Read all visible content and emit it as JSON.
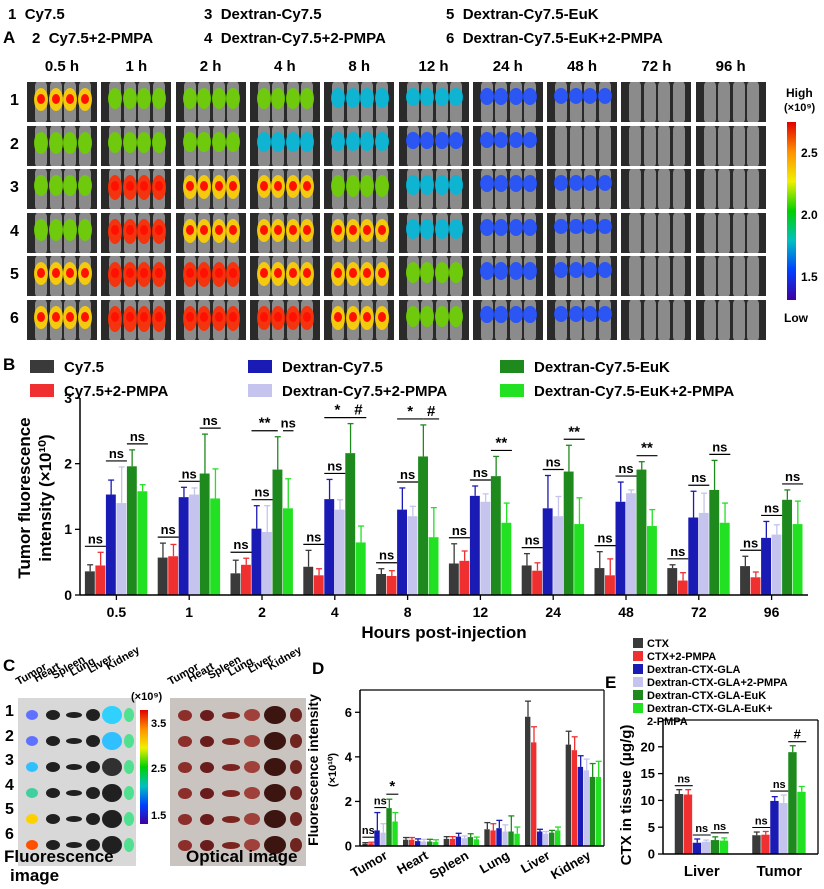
{
  "panel_a": {
    "letter": "A",
    "legend": [
      {
        "num": "1",
        "label": "Cy7.5"
      },
      {
        "num": "2",
        "label": "Cy7.5+2-PMPA"
      },
      {
        "num": "3",
        "label": "Dextran-Cy7.5"
      },
      {
        "num": "4",
        "label": "Dextran-Cy7.5+2-PMPA"
      },
      {
        "num": "5",
        "label": "Dextran-Cy7.5-EuK"
      },
      {
        "num": "6",
        "label": "Dextran-Cy7.5-EuK+2-PMPA"
      }
    ],
    "timepoints": [
      "0.5 h",
      "1 h",
      "2 h",
      "4 h",
      "8 h",
      "12 h",
      "24 h",
      "48 h",
      "72 h",
      "96 h"
    ],
    "rows": [
      "1",
      "2",
      "3",
      "4",
      "5",
      "6"
    ],
    "colorbar": {
      "high": "High",
      "unit": "(×10⁹)",
      "ticks": [
        "2.5",
        "2.0",
        "1.5"
      ],
      "low": "Low"
    }
  },
  "panel_c": {
    "letter": "C",
    "organs": [
      "Tumor",
      "Heart",
      "Spleen",
      "Lung",
      "Liver",
      "Kidney"
    ],
    "rows": [
      "1",
      "2",
      "3",
      "4",
      "5",
      "6"
    ],
    "colorbar": {
      "unit": "(×10⁹)",
      "ticks": [
        "3.5",
        "2.5",
        "1.5"
      ]
    },
    "caption_fluor_1": "Fluorescence",
    "caption_fluor_2": "image",
    "caption_optical": "Optical image"
  },
  "colors": {
    "black": "#3a3a3a",
    "red": "#f03030",
    "blue": "#1a1ab4",
    "lavender": "#c4c4ee",
    "darkgreen": "#1e8a1e",
    "lightgreen": "#22e022"
  },
  "chart_data": [
    {
      "id": "B",
      "type": "bar",
      "letter": "B",
      "ylabel_1": "Tumor fluorescence",
      "ylabel_2": "intensity (×10¹⁰)",
      "xlabel": "Hours post-injection",
      "categories": [
        "0.5",
        "1",
        "2",
        "4",
        "8",
        "12",
        "24",
        "48",
        "72",
        "96"
      ],
      "ylim": [
        0,
        3
      ],
      "yticks": [
        "0",
        "1",
        "2",
        "3"
      ],
      "series": [
        {
          "name": "Cy7.5",
          "color": "#3a3a3a",
          "values": [
            0.36,
            0.57,
            0.33,
            0.43,
            0.32,
            0.48,
            0.45,
            0.41,
            0.41,
            0.44
          ],
          "errors": [
            0.1,
            0.22,
            0.2,
            0.25,
            0.08,
            0.3,
            0.18,
            0.25,
            0.05,
            0.15
          ]
        },
        {
          "name": "Cy7.5+2-PMPA",
          "color": "#f03030",
          "values": [
            0.45,
            0.59,
            0.46,
            0.3,
            0.29,
            0.52,
            0.37,
            0.3,
            0.22,
            0.27
          ],
          "errors": [
            0.2,
            0.18,
            0.1,
            0.1,
            0.08,
            0.15,
            0.12,
            0.25,
            0.12,
            0.08
          ]
        },
        {
          "name": "Dextran-Cy7.5",
          "color": "#1a1ab4",
          "values": [
            1.53,
            1.49,
            1.01,
            1.46,
            1.3,
            1.51,
            1.32,
            1.42,
            1.18,
            0.87
          ],
          "errors": [
            0.22,
            0.15,
            0.35,
            0.3,
            0.33,
            0.15,
            0.5,
            0.3,
            0.4,
            0.25
          ]
        },
        {
          "name": "Dextran-Cy7.5+2-PMPA",
          "color": "#c4c4ee",
          "values": [
            1.4,
            1.53,
            0.96,
            1.3,
            1.2,
            1.42,
            1.2,
            1.55,
            1.25,
            0.92
          ],
          "errors": [
            0.55,
            0.1,
            0.4,
            0.15,
            0.15,
            0.12,
            0.3,
            0.05,
            0.3,
            0.15
          ]
        },
        {
          "name": "Dextran-Cy7.5-EuK",
          "color": "#1e8a1e",
          "values": [
            1.96,
            1.85,
            1.91,
            2.16,
            2.11,
            1.81,
            1.88,
            1.91,
            1.6,
            1.45
          ],
          "errors": [
            0.25,
            0.6,
            0.5,
            0.45,
            0.48,
            0.3,
            0.4,
            0.12,
            0.45,
            0.15
          ]
        },
        {
          "name": "Dextran-Cy7.5-EuK+2-PMPA",
          "color": "#22e022",
          "values": [
            1.58,
            1.47,
            1.32,
            0.8,
            0.88,
            1.1,
            1.08,
            1.05,
            1.1,
            1.08
          ],
          "errors": [
            0.1,
            0.45,
            0.45,
            0.25,
            0.45,
            0.3,
            0.4,
            0.25,
            0.3,
            0.35
          ]
        }
      ],
      "annotations": [
        {
          "group": 0,
          "pair": "left",
          "text": "ns"
        },
        {
          "group": 0,
          "pair": "mid",
          "text": "ns"
        },
        {
          "group": 0,
          "pair": "right",
          "text": "ns"
        },
        {
          "group": 1,
          "pair": "left",
          "text": "ns"
        },
        {
          "group": 1,
          "pair": "mid",
          "text": "ns"
        },
        {
          "group": 1,
          "pair": "right",
          "text": "ns"
        },
        {
          "group": 2,
          "pair": "left",
          "text": "ns"
        },
        {
          "group": 2,
          "pair": "mid",
          "text": "ns"
        },
        {
          "group": 2,
          "pair": "right",
          "text": "**"
        },
        {
          "group": 2,
          "pair": "right2",
          "text": "ns"
        },
        {
          "group": 3,
          "pair": "left",
          "text": "ns"
        },
        {
          "group": 3,
          "pair": "mid",
          "text": "ns"
        },
        {
          "group": 3,
          "pair": "right",
          "text": "*"
        },
        {
          "group": 3,
          "pair": "right2",
          "text": "#"
        },
        {
          "group": 4,
          "pair": "left",
          "text": "ns"
        },
        {
          "group": 4,
          "pair": "mid",
          "text": "ns"
        },
        {
          "group": 4,
          "pair": "right",
          "text": "*"
        },
        {
          "group": 4,
          "pair": "right2",
          "text": "#"
        },
        {
          "group": 5,
          "pair": "left",
          "text": "ns"
        },
        {
          "group": 5,
          "pair": "mid",
          "text": "ns"
        },
        {
          "group": 5,
          "pair": "right",
          "text": "**"
        },
        {
          "group": 6,
          "pair": "left",
          "text": "ns"
        },
        {
          "group": 6,
          "pair": "mid",
          "text": "ns"
        },
        {
          "group": 6,
          "pair": "right",
          "text": "**"
        },
        {
          "group": 7,
          "pair": "left",
          "text": "ns"
        },
        {
          "group": 7,
          "pair": "mid",
          "text": "ns"
        },
        {
          "group": 7,
          "pair": "right",
          "text": "**"
        },
        {
          "group": 8,
          "pair": "left",
          "text": "ns"
        },
        {
          "group": 8,
          "pair": "mid",
          "text": "ns"
        },
        {
          "group": 8,
          "pair": "right",
          "text": "ns"
        },
        {
          "group": 9,
          "pair": "left",
          "text": "ns"
        },
        {
          "group": 9,
          "pair": "mid",
          "text": "ns"
        },
        {
          "group": 9,
          "pair": "right",
          "text": "ns"
        }
      ]
    },
    {
      "id": "D",
      "type": "bar",
      "letter": "D",
      "ylabel_1": "Fluorescence intensity",
      "ylabel_2": "(×10¹⁰)",
      "categories": [
        "Tumor",
        "Heart",
        "Spleen",
        "Lung",
        "Liver",
        "Kidney"
      ],
      "ylim": [
        0,
        7
      ],
      "yticks": [
        "0",
        "2",
        "4",
        "6"
      ],
      "series": [
        {
          "name": "1",
          "color": "#3a3a3a",
          "values": [
            0.1,
            0.28,
            0.32,
            0.75,
            5.8,
            4.55
          ],
          "errors": [
            0.05,
            0.1,
            0.1,
            0.3,
            0.7,
            0.6
          ]
        },
        {
          "name": "2",
          "color": "#f03030",
          "values": [
            0.12,
            0.28,
            0.32,
            0.7,
            4.65,
            4.3
          ],
          "errors": [
            0.05,
            0.1,
            0.1,
            0.3,
            0.7,
            0.6
          ]
        },
        {
          "name": "3",
          "color": "#1a1ab4",
          "values": [
            0.7,
            0.22,
            0.42,
            0.8,
            0.65,
            3.55
          ],
          "errors": [
            0.8,
            0.1,
            0.15,
            0.35,
            0.1,
            0.5
          ]
        },
        {
          "name": "4",
          "color": "#c4c4ee",
          "values": [
            0.6,
            0.2,
            0.35,
            0.65,
            0.55,
            3.4
          ],
          "errors": [
            0.4,
            0.1,
            0.1,
            0.3,
            0.1,
            0.5
          ]
        },
        {
          "name": "5",
          "color": "#1e8a1e",
          "values": [
            1.7,
            0.2,
            0.4,
            0.65,
            0.6,
            3.1
          ],
          "errors": [
            0.4,
            0.1,
            0.15,
            0.7,
            0.1,
            0.6
          ]
        },
        {
          "name": "6",
          "color": "#22e022",
          "values": [
            1.1,
            0.18,
            0.3,
            0.55,
            0.7,
            3.1
          ],
          "errors": [
            0.4,
            0.1,
            0.1,
            0.3,
            0.15,
            0.7
          ]
        }
      ],
      "annotations": [
        {
          "group": 0,
          "text": "ns",
          "at": "left"
        },
        {
          "group": 0,
          "text": "ns",
          "at": "mid"
        },
        {
          "group": 0,
          "text": "*",
          "at": "right"
        }
      ]
    },
    {
      "id": "E",
      "type": "bar",
      "letter": "E",
      "ylabel": "CTX in tissue (μg/g)",
      "categories": [
        "Liver",
        "Tumor"
      ],
      "ylim": [
        0,
        25
      ],
      "yticks": [
        "0",
        "5",
        "10",
        "15",
        "20"
      ],
      "series": [
        {
          "name": "CTX",
          "color": "#3a3a3a",
          "values": [
            11.2,
            3.5
          ],
          "errors": [
            0.8,
            0.6
          ]
        },
        {
          "name": "CTX+2-PMPA",
          "color": "#f03030",
          "values": [
            11.1,
            3.6
          ],
          "errors": [
            0.9,
            0.6
          ]
        },
        {
          "name": "Dextran-CTX-GLA",
          "color": "#1a1ab4",
          "values": [
            2.1,
            9.9
          ],
          "errors": [
            0.7,
            0.8
          ]
        },
        {
          "name": "Dextran-CTX-GLA+2-PMPA",
          "color": "#c4c4ee",
          "values": [
            2.3,
            9.5
          ],
          "errors": [
            0.3,
            1.5
          ]
        },
        {
          "name": "Dextran-CTX-GLA-EuK",
          "color": "#1e8a1e",
          "values": [
            2.6,
            19.0
          ],
          "errors": [
            0.6,
            1.2
          ]
        },
        {
          "name": "Dextran-CTX-GLA-EuK+2-PMPA",
          "legend_1": "Dextran-CTX-GLA-EuK+",
          "legend_2": "2-PMPA",
          "color": "#22e022",
          "values": [
            2.5,
            11.6
          ],
          "errors": [
            0.5,
            1.0
          ]
        }
      ],
      "annotations": [
        {
          "group": 0,
          "text": "ns",
          "at": "left"
        },
        {
          "group": 0,
          "text": "ns",
          "at": "mid"
        },
        {
          "group": 0,
          "text": "ns",
          "at": "right"
        },
        {
          "group": 1,
          "text": "ns",
          "at": "left"
        },
        {
          "group": 1,
          "text": "ns",
          "at": "mid"
        },
        {
          "group": 1,
          "text": "#",
          "at": "right"
        }
      ]
    }
  ]
}
